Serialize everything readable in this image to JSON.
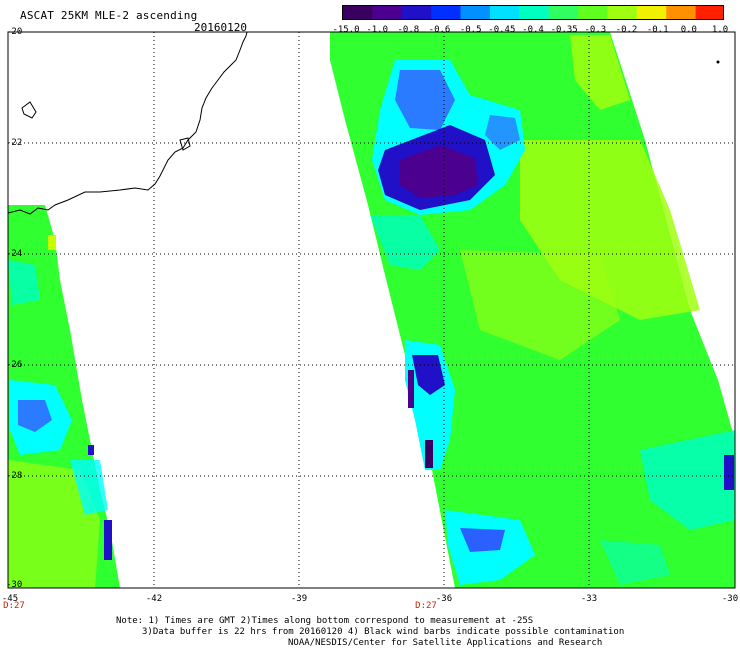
{
  "header": {
    "title": "ASCAT 25KM MLE-2 ascending",
    "date": "20160120"
  },
  "colorbar": {
    "labels": [
      "-15.0",
      "-1.0",
      "-0.8",
      "-0.6",
      "-0.5",
      "-0.45",
      "-0.4",
      "-0.35",
      "-0.3",
      "-0.2",
      "-0.1",
      "0.0",
      "1.0"
    ],
    "colors": [
      "#3a0060",
      "#4b0090",
      "#2010c8",
      "#0030ff",
      "#0090ff",
      "#00e0ff",
      "#00ffc0",
      "#30ff60",
      "#60ff20",
      "#a0ff10",
      "#f0f000",
      "#ff9000",
      "#ff2000"
    ]
  },
  "map": {
    "lat_labels": [
      "-20",
      "-22",
      "-24",
      "-26",
      "-28",
      "-30"
    ],
    "lon_labels": [
      "-45",
      "-42",
      "-39",
      "-36",
      "-33",
      "-30"
    ],
    "time_tags": [
      "D:27",
      "D:27"
    ],
    "grid_color": "#000000",
    "swath_colors": {
      "green": "#30ff30",
      "yellow_green": "#a0ff10",
      "cyan": "#00ffff",
      "blue": "#0030ff",
      "purple": "#4b0090"
    }
  },
  "notes": {
    "line1": "Note: 1) Times are GMT 2)Times along bottom correspond to measurement at -25S",
    "line2": "3)Data buffer is 22 hrs from 20160120 4) Black wind barbs indicate possible contamination",
    "line3": "NOAA/NESDIS/Center for Satellite Applications and Research"
  }
}
